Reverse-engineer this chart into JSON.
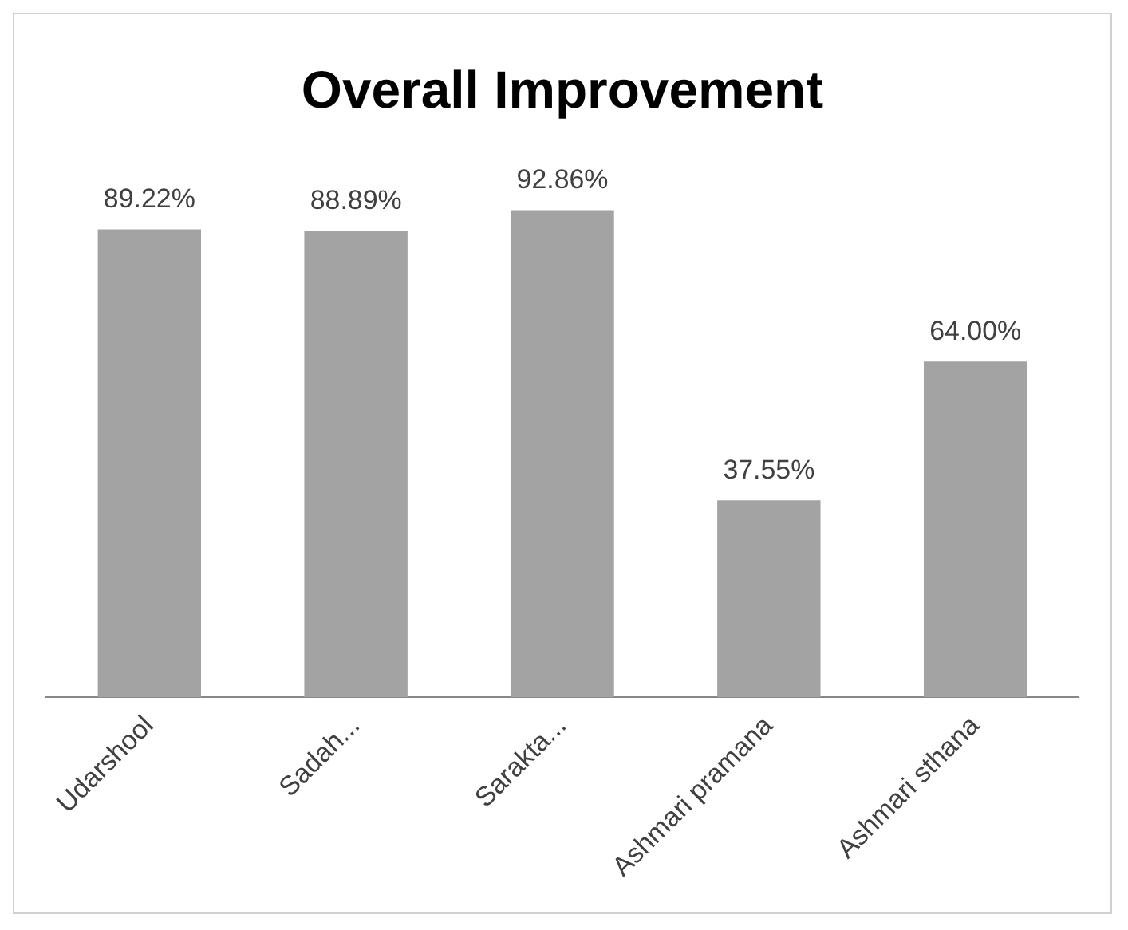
{
  "chart_data": {
    "type": "bar",
    "title": "Overall Improvement",
    "categories": [
      "Udarshool",
      "Sadah...",
      "Sarakta...",
      "Ashmari pramana",
      "Ashmari sthana"
    ],
    "values": [
      89.22,
      88.89,
      92.86,
      37.55,
      64.0
    ],
    "value_labels": [
      "89.22%",
      "88.89%",
      "92.86%",
      "37.55%",
      "64.00%"
    ],
    "color": "#a3a3a3",
    "grid": false,
    "legend": false
  }
}
